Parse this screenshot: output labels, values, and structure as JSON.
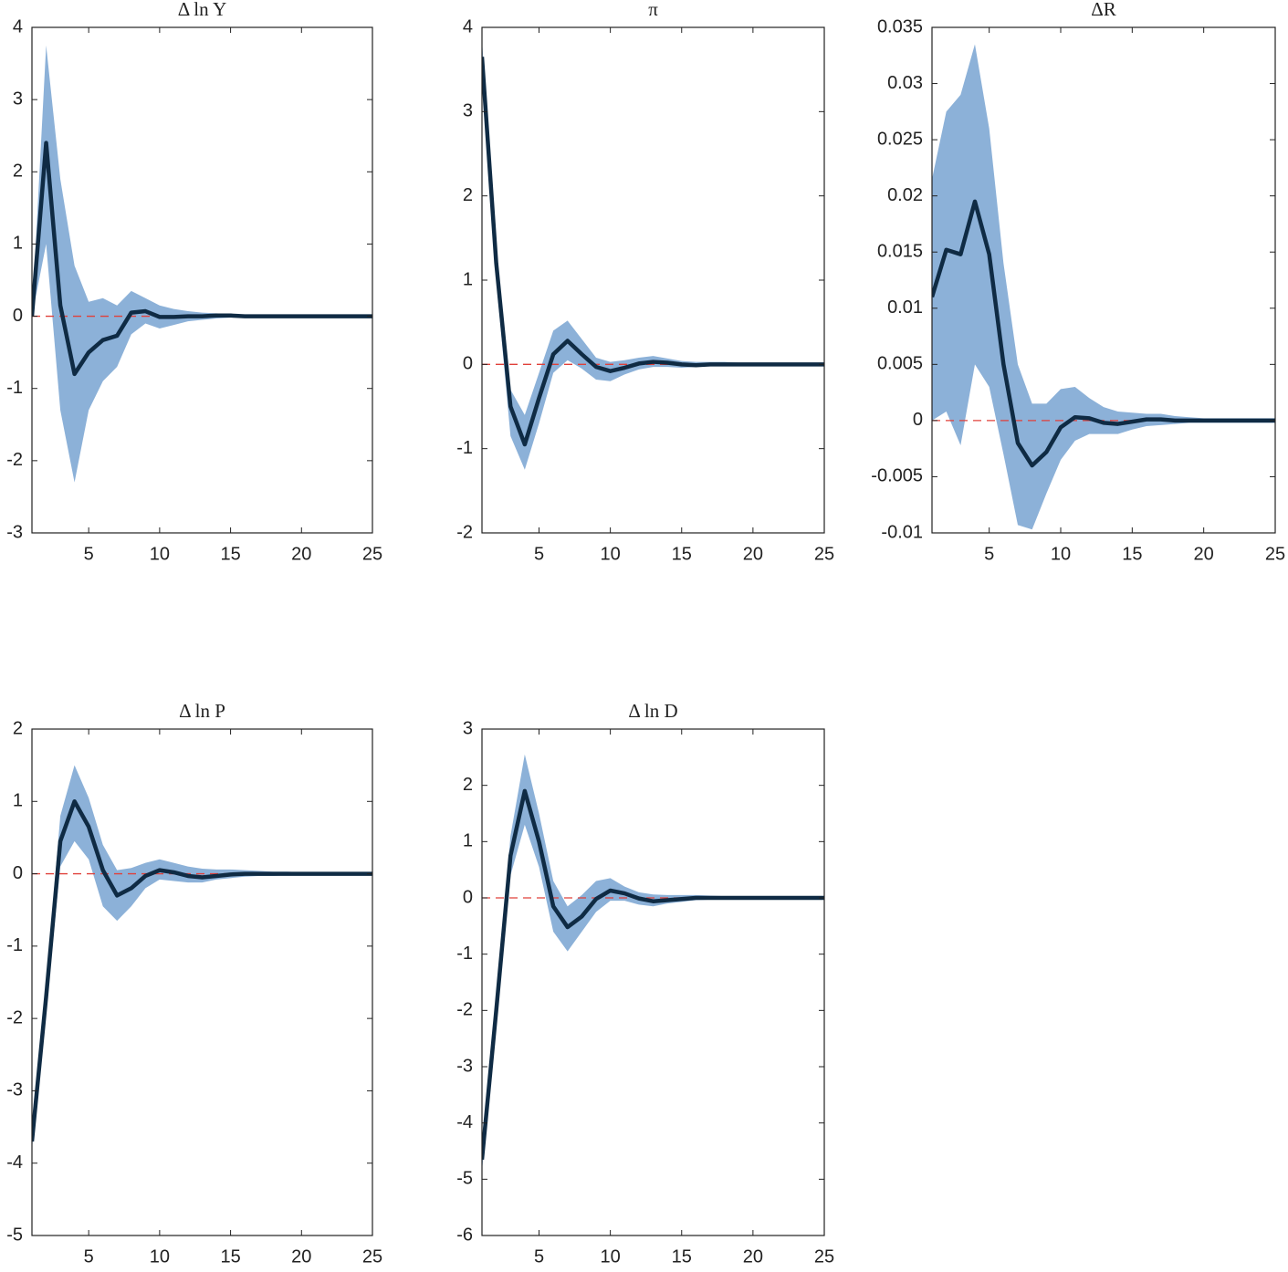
{
  "chart_data": [
    {
      "type": "line",
      "title": "Δ ln Y",
      "x": [
        1,
        2,
        3,
        4,
        5,
        6,
        7,
        8,
        9,
        10,
        11,
        12,
        13,
        14,
        15,
        16,
        17,
        18,
        19,
        20,
        21,
        22,
        23,
        24,
        25
      ],
      "xlim": [
        1,
        25
      ],
      "xticks": [
        5,
        10,
        15,
        20,
        25
      ],
      "ylim": [
        -3,
        4
      ],
      "yticks": [
        -3,
        -2,
        -1,
        0,
        1,
        2,
        3,
        4
      ],
      "ref_line": {
        "value": 0,
        "color": "#e0403a"
      },
      "band": {
        "color": "#8cb1d8",
        "upper": [
          0,
          3.75,
          1.9,
          0.7,
          0.2,
          0.25,
          0.15,
          0.35,
          0.25,
          0.15,
          0.1,
          0.07,
          0.05,
          0.04,
          0.03,
          0.02,
          0.02,
          0.01,
          0.01,
          0.01,
          0.01,
          0.01,
          0.01,
          0.01,
          0.01
        ],
        "lower": [
          0,
          1.0,
          -1.3,
          -2.3,
          -1.3,
          -0.9,
          -0.7,
          -0.25,
          -0.1,
          -0.17,
          -0.12,
          -0.07,
          -0.05,
          -0.03,
          -0.02,
          -0.02,
          -0.02,
          -0.01,
          -0.01,
          -0.01,
          -0.01,
          -0.01,
          -0.01,
          -0.01,
          -0.01
        ]
      },
      "series": [
        {
          "color": "#0f2b44",
          "values": [
            0,
            2.4,
            0.15,
            -0.8,
            -0.5,
            -0.33,
            -0.27,
            0.05,
            0.07,
            -0.01,
            -0.01,
            0,
            0,
            0.01,
            0.01,
            0,
            0,
            0,
            0,
            0,
            0,
            0,
            0,
            0,
            0
          ]
        }
      ]
    },
    {
      "type": "line",
      "title": "π",
      "x": [
        1,
        2,
        3,
        4,
        5,
        6,
        7,
        8,
        9,
        10,
        11,
        12,
        13,
        14,
        15,
        16,
        17,
        18,
        19,
        20,
        21,
        22,
        23,
        24,
        25
      ],
      "xlim": [
        1,
        25
      ],
      "xticks": [
        5,
        10,
        15,
        20,
        25
      ],
      "ylim": [
        -2,
        4
      ],
      "yticks": [
        -2,
        -1,
        0,
        1,
        2,
        3,
        4
      ],
      "ref_line": {
        "value": 0,
        "color": "#e0403a"
      },
      "band": {
        "color": "#8cb1d8",
        "upper": [
          3.85,
          1.4,
          -0.3,
          -0.6,
          -0.1,
          0.4,
          0.52,
          0.3,
          0.08,
          0.03,
          0.05,
          0.08,
          0.1,
          0.07,
          0.04,
          0.03,
          0.03,
          0.03,
          0.02,
          0.02,
          0.02,
          0.02,
          0.02,
          0.02,
          0.02
        ],
        "lower": [
          3.45,
          1.0,
          -0.85,
          -1.25,
          -0.7,
          -0.1,
          0.05,
          -0.05,
          -0.18,
          -0.2,
          -0.12,
          -0.06,
          -0.03,
          -0.03,
          -0.04,
          -0.03,
          -0.02,
          -0.02,
          -0.02,
          -0.02,
          -0.02,
          -0.02,
          -0.02,
          -0.02,
          -0.02
        ]
      },
      "series": [
        {
          "color": "#0f2b44",
          "values": [
            3.65,
            1.2,
            -0.5,
            -0.95,
            -0.4,
            0.12,
            0.28,
            0.12,
            -0.03,
            -0.08,
            -0.04,
            0.01,
            0.03,
            0.02,
            0,
            -0.01,
            0,
            0,
            0,
            0,
            0,
            0,
            0,
            0,
            0
          ]
        }
      ]
    },
    {
      "type": "line",
      "title": "ΔR",
      "x": [
        1,
        2,
        3,
        4,
        5,
        6,
        7,
        8,
        9,
        10,
        11,
        12,
        13,
        14,
        15,
        16,
        17,
        18,
        19,
        20,
        21,
        22,
        23,
        24,
        25
      ],
      "xlim": [
        1,
        25
      ],
      "xticks": [
        5,
        10,
        15,
        20,
        25
      ],
      "ylim": [
        -0.01,
        0.035
      ],
      "yticks": [
        -0.01,
        -0.005,
        0,
        0.005,
        0.01,
        0.015,
        0.02,
        0.025,
        0.03,
        0.035
      ],
      "ref_line": {
        "value": 0,
        "color": "#e0403a"
      },
      "band": {
        "color": "#8cb1d8",
        "upper": [
          0.0215,
          0.0275,
          0.029,
          0.0335,
          0.026,
          0.014,
          0.005,
          0.0015,
          0.0015,
          0.0028,
          0.003,
          0.002,
          0.0012,
          0.0008,
          0.0007,
          0.0006,
          0.0006,
          0.0004,
          0.0003,
          0.0002,
          0.0002,
          0.0002,
          0.0002,
          0.0002,
          0.0002
        ],
        "lower": [
          0,
          0.0008,
          -0.0022,
          0.005,
          0.003,
          -0.003,
          -0.0093,
          -0.0097,
          -0.0065,
          -0.0035,
          -0.0018,
          -0.0012,
          -0.0012,
          -0.0012,
          -0.0008,
          -0.0005,
          -0.0004,
          -0.0003,
          -0.0002,
          -0.0002,
          -0.0002,
          -0.0002,
          -0.0002,
          -0.0002,
          -0.0002
        ]
      },
      "series": [
        {
          "color": "#0f2b44",
          "values": [
            0.011,
            0.0152,
            0.0148,
            0.0195,
            0.0148,
            0.005,
            -0.002,
            -0.004,
            -0.0028,
            -0.0006,
            0.0003,
            0.0002,
            -0.0002,
            -0.0003,
            -0.0001,
            0.0001,
            0.0001,
            0,
            0,
            0,
            0,
            0,
            0,
            0,
            0
          ]
        }
      ]
    },
    {
      "type": "line",
      "title": "Δ ln P",
      "x": [
        1,
        2,
        3,
        4,
        5,
        6,
        7,
        8,
        9,
        10,
        11,
        12,
        13,
        14,
        15,
        16,
        17,
        18,
        19,
        20,
        21,
        22,
        23,
        24,
        25
      ],
      "xlim": [
        1,
        25
      ],
      "xticks": [
        5,
        10,
        15,
        20,
        25
      ],
      "ylim": [
        -5,
        2
      ],
      "yticks": [
        -5,
        -4,
        -3,
        -2,
        -1,
        0,
        1,
        2
      ],
      "ref_line": {
        "value": 0,
        "color": "#e0403a"
      },
      "band": {
        "color": "#8cb1d8",
        "upper": [
          -3.6,
          -1.5,
          0.8,
          1.5,
          1.05,
          0.4,
          0.05,
          0.08,
          0.15,
          0.2,
          0.15,
          0.1,
          0.07,
          0.06,
          0.06,
          0.05,
          0.04,
          0.03,
          0.03,
          0.02,
          0.02,
          0.02,
          0.02,
          0.02,
          0.02
        ],
        "lower": [
          -3.8,
          -1.9,
          0.1,
          0.45,
          0.2,
          -0.45,
          -0.65,
          -0.45,
          -0.2,
          -0.08,
          -0.1,
          -0.12,
          -0.12,
          -0.08,
          -0.06,
          -0.04,
          -0.03,
          -0.03,
          -0.02,
          -0.02,
          -0.02,
          -0.02,
          -0.02,
          -0.02,
          -0.02
        ]
      },
      "series": [
        {
          "color": "#0f2b44",
          "values": [
            -3.7,
            -1.7,
            0.45,
            1.0,
            0.65,
            0.05,
            -0.3,
            -0.2,
            -0.03,
            0.05,
            0.02,
            -0.03,
            -0.05,
            -0.03,
            -0.01,
            0,
            0,
            0,
            0,
            0,
            0,
            0,
            0,
            0,
            0
          ]
        }
      ]
    },
    {
      "type": "line",
      "title": "Δ ln D",
      "x": [
        1,
        2,
        3,
        4,
        5,
        6,
        7,
        8,
        9,
        10,
        11,
        12,
        13,
        14,
        15,
        16,
        17,
        18,
        19,
        20,
        21,
        22,
        23,
        24,
        25
      ],
      "xlim": [
        1,
        25
      ],
      "xticks": [
        5,
        10,
        15,
        20,
        25
      ],
      "ylim": [
        -6,
        3
      ],
      "yticks": [
        -6,
        -5,
        -4,
        -3,
        -2,
        -1,
        0,
        1,
        2,
        3
      ],
      "ref_line": {
        "value": 0,
        "color": "#e0403a"
      },
      "band": {
        "color": "#8cb1d8",
        "upper": [
          -4.5,
          -1.8,
          1.1,
          2.55,
          1.5,
          0.3,
          -0.15,
          0.05,
          0.3,
          0.35,
          0.2,
          0.1,
          0.06,
          0.05,
          0.05,
          0.05,
          0.04,
          0.03,
          0.02,
          0.02,
          0.02,
          0.02,
          0.02,
          0.02,
          0.02
        ],
        "lower": [
          -4.85,
          -2.2,
          0.4,
          1.3,
          0.55,
          -0.6,
          -0.95,
          -0.6,
          -0.25,
          -0.05,
          -0.05,
          -0.12,
          -0.15,
          -0.1,
          -0.07,
          -0.04,
          -0.03,
          -0.02,
          -0.02,
          -0.02,
          -0.02,
          -0.02,
          -0.02,
          -0.02,
          -0.02
        ]
      },
      "series": [
        {
          "color": "#0f2b44",
          "values": [
            -4.65,
            -2.0,
            0.75,
            1.9,
            1.0,
            -0.15,
            -0.52,
            -0.33,
            -0.02,
            0.13,
            0.08,
            -0.01,
            -0.06,
            -0.04,
            -0.02,
            0,
            0,
            0,
            0,
            0,
            0,
            0,
            0,
            0,
            0
          ]
        }
      ]
    }
  ]
}
